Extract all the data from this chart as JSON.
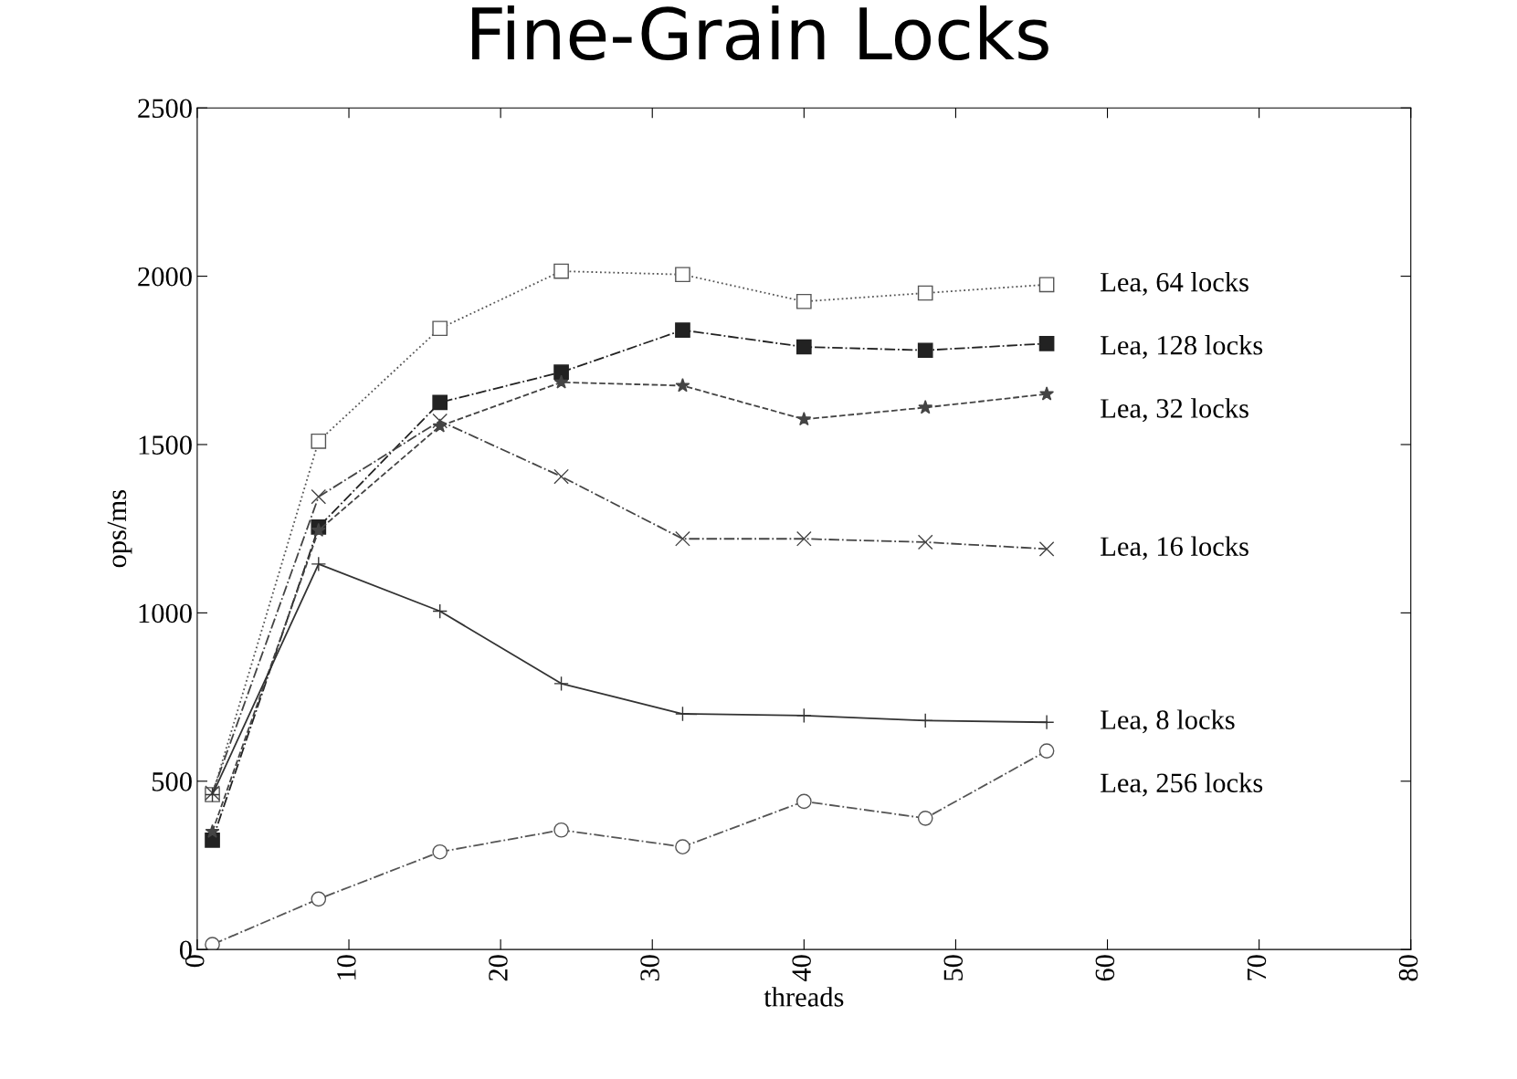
{
  "chart_data": {
    "type": "line",
    "title": "Fine-Grain Locks",
    "xlabel": "threads",
    "ylabel": "ops/ms",
    "x": [
      1,
      8,
      16,
      24,
      32,
      40,
      48,
      56
    ],
    "series": [
      {
        "name": "Lea, 64 locks",
        "color": "#555555",
        "marker": "square_open",
        "line_style": "dotted",
        "values": [
          460,
          1510,
          1845,
          2015,
          2005,
          1925,
          1950,
          1975
        ]
      },
      {
        "name": "Lea, 128 locks",
        "color": "#222222",
        "marker": "square",
        "line_style": "dashdot",
        "values": [
          325,
          1255,
          1625,
          1715,
          1840,
          1790,
          1780,
          1800
        ]
      },
      {
        "name": "Lea, 32 locks",
        "color": "#444444",
        "marker": "star",
        "line_style": "dashed",
        "values": [
          350,
          1245,
          1555,
          1685,
          1675,
          1575,
          1610,
          1650
        ]
      },
      {
        "name": "Lea, 16 locks",
        "color": "#444444",
        "marker": "cross",
        "line_style": "dashdot",
        "values": [
          465,
          1345,
          1570,
          1405,
          1220,
          1220,
          1210,
          1190
        ]
      },
      {
        "name": "Lea, 8 locks",
        "color": "#333333",
        "marker": "plus",
        "line_style": "solid",
        "values": [
          460,
          1145,
          1005,
          790,
          700,
          695,
          680,
          675
        ]
      },
      {
        "name": "Lea, 256 locks",
        "color": "#555555",
        "marker": "circle_open",
        "line_style": "dashdot",
        "values": [
          15,
          150,
          290,
          355,
          305,
          440,
          390,
          590
        ]
      }
    ],
    "xlim": [
      0,
      80
    ],
    "xticks": [
      0,
      10,
      20,
      30,
      40,
      50,
      60,
      70,
      80
    ],
    "ylim": [
      0,
      2500
    ],
    "yticks": [
      0,
      500,
      1000,
      1500,
      2000,
      2500
    ],
    "grid": false,
    "legend": false
  }
}
